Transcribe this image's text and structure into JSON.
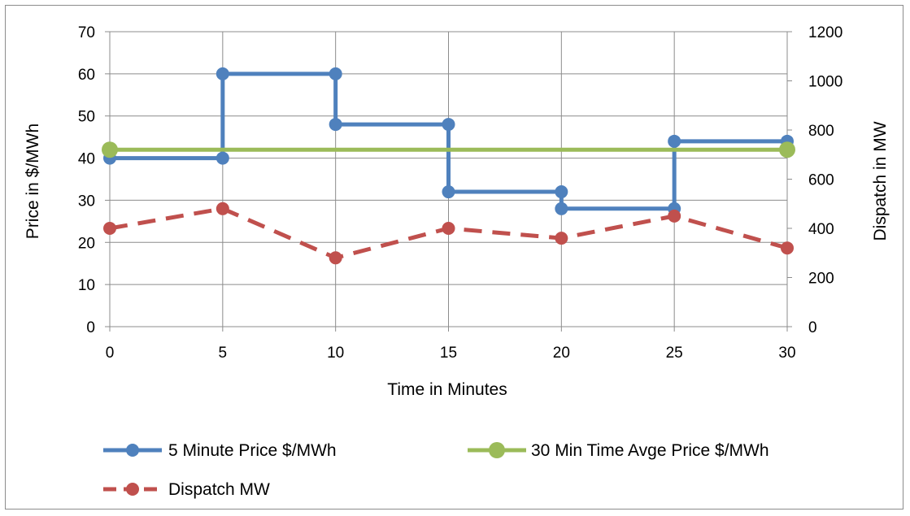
{
  "chart_data": {
    "type": "line",
    "title": "",
    "xlabel": "Time in Minutes",
    "ylabel": "Price in $/MWh",
    "y2label": "Dispatch in MW",
    "xlim": [
      0,
      30
    ],
    "ylim": [
      0,
      70
    ],
    "y2lim": [
      0,
      1200
    ],
    "x_ticks": [
      0,
      5,
      10,
      15,
      20,
      25,
      30
    ],
    "y_ticks": [
      0,
      10,
      20,
      30,
      40,
      50,
      60,
      70
    ],
    "y2_ticks": [
      0,
      200,
      400,
      600,
      800,
      1000,
      1200
    ],
    "grid": true,
    "legend_position": "bottom",
    "series": [
      {
        "name": "5 Minute Price $/MWh",
        "axis": "left",
        "style": "step",
        "color": "#4f81bd",
        "points": [
          [
            0,
            40
          ],
          [
            5,
            40
          ],
          [
            5,
            60
          ],
          [
            10,
            60
          ],
          [
            10,
            48
          ],
          [
            15,
            48
          ],
          [
            15,
            32
          ],
          [
            20,
            32
          ],
          [
            20,
            28
          ],
          [
            25,
            28
          ],
          [
            25,
            44
          ],
          [
            30,
            44
          ]
        ]
      },
      {
        "name": "30 Min Time Avge Price $/MWh",
        "axis": "left",
        "style": "solid",
        "color": "#9bbb59",
        "points": [
          [
            0,
            42
          ],
          [
            30,
            42
          ]
        ]
      },
      {
        "name": "Dispatch MW",
        "axis": "right",
        "style": "dashed",
        "color": "#c0504d",
        "points": [
          [
            0,
            400
          ],
          [
            5,
            480
          ],
          [
            10,
            280
          ],
          [
            15,
            400
          ],
          [
            20,
            360
          ],
          [
            25,
            450
          ],
          [
            30,
            320
          ]
        ]
      }
    ]
  }
}
